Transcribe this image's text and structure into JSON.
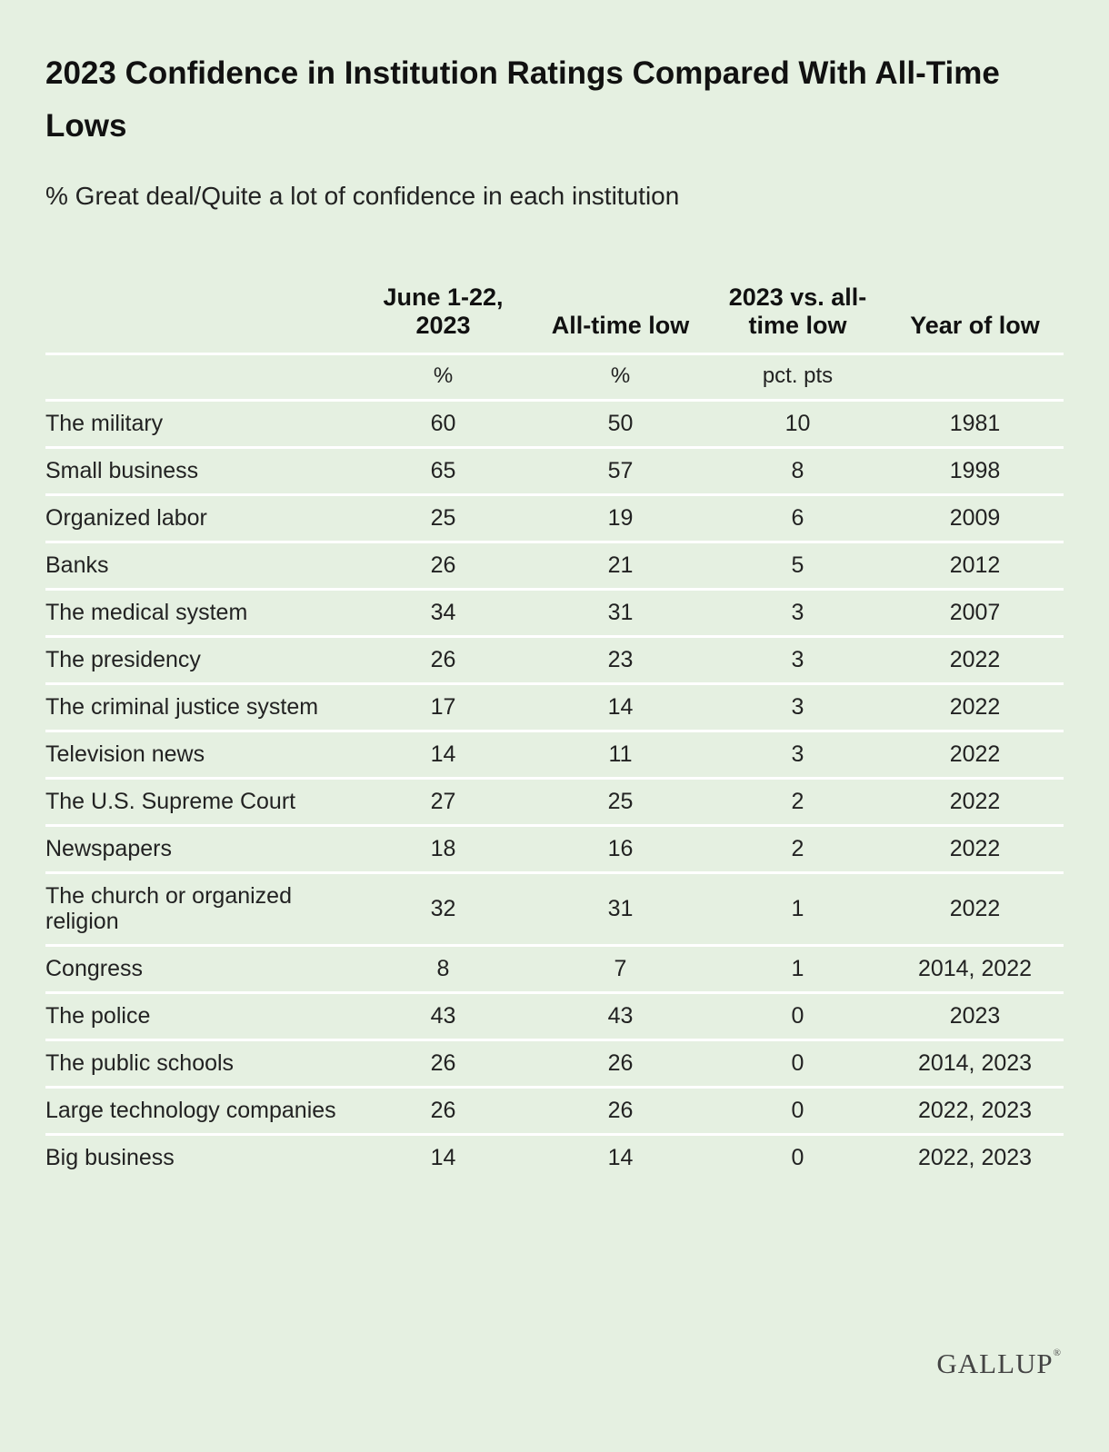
{
  "chart_data": {
    "type": "table",
    "title": "2023 Confidence in Institution Ratings Compared With All-Time Lows",
    "subtitle": "% Great deal/Quite a lot of confidence in each institution",
    "columns": [
      "",
      "June 1-22, 2023",
      "All-time low",
      "2023 vs. all-time low",
      "Year of low"
    ],
    "units": [
      "",
      "%",
      "%",
      "pct. pts",
      ""
    ],
    "rows": [
      {
        "institution": "The military",
        "june_2023": 60,
        "all_time_low": 50,
        "diff": 10,
        "year_of_low": "1981"
      },
      {
        "institution": "Small business",
        "june_2023": 65,
        "all_time_low": 57,
        "diff": 8,
        "year_of_low": "1998"
      },
      {
        "institution": "Organized labor",
        "june_2023": 25,
        "all_time_low": 19,
        "diff": 6,
        "year_of_low": "2009"
      },
      {
        "institution": "Banks",
        "june_2023": 26,
        "all_time_low": 21,
        "diff": 5,
        "year_of_low": "2012"
      },
      {
        "institution": "The medical system",
        "june_2023": 34,
        "all_time_low": 31,
        "diff": 3,
        "year_of_low": "2007"
      },
      {
        "institution": "The presidency",
        "june_2023": 26,
        "all_time_low": 23,
        "diff": 3,
        "year_of_low": "2022"
      },
      {
        "institution": "The criminal justice system",
        "june_2023": 17,
        "all_time_low": 14,
        "diff": 3,
        "year_of_low": "2022"
      },
      {
        "institution": "Television news",
        "june_2023": 14,
        "all_time_low": 11,
        "diff": 3,
        "year_of_low": "2022"
      },
      {
        "institution": "The U.S. Supreme Court",
        "june_2023": 27,
        "all_time_low": 25,
        "diff": 2,
        "year_of_low": "2022"
      },
      {
        "institution": "Newspapers",
        "june_2023": 18,
        "all_time_low": 16,
        "diff": 2,
        "year_of_low": "2022"
      },
      {
        "institution": "The church or organized religion",
        "june_2023": 32,
        "all_time_low": 31,
        "diff": 1,
        "year_of_low": "2022"
      },
      {
        "institution": "Congress",
        "june_2023": 8,
        "all_time_low": 7,
        "diff": 1,
        "year_of_low": "2014, 2022"
      },
      {
        "institution": "The police",
        "june_2023": 43,
        "all_time_low": 43,
        "diff": 0,
        "year_of_low": "2023"
      },
      {
        "institution": "The public schools",
        "june_2023": 26,
        "all_time_low": 26,
        "diff": 0,
        "year_of_low": "2014, 2023"
      },
      {
        "institution": "Large technology companies",
        "june_2023": 26,
        "all_time_low": 26,
        "diff": 0,
        "year_of_low": "2022, 2023"
      },
      {
        "institution": "Big business",
        "june_2023": 14,
        "all_time_low": 14,
        "diff": 0,
        "year_of_low": "2022, 2023"
      }
    ]
  },
  "brand": {
    "logo_text": "GALLUP",
    "logo_mark": "®",
    "logo_color": "#444444"
  },
  "colors": {
    "background": "#e5f0e1",
    "divider": "#ffffff"
  }
}
